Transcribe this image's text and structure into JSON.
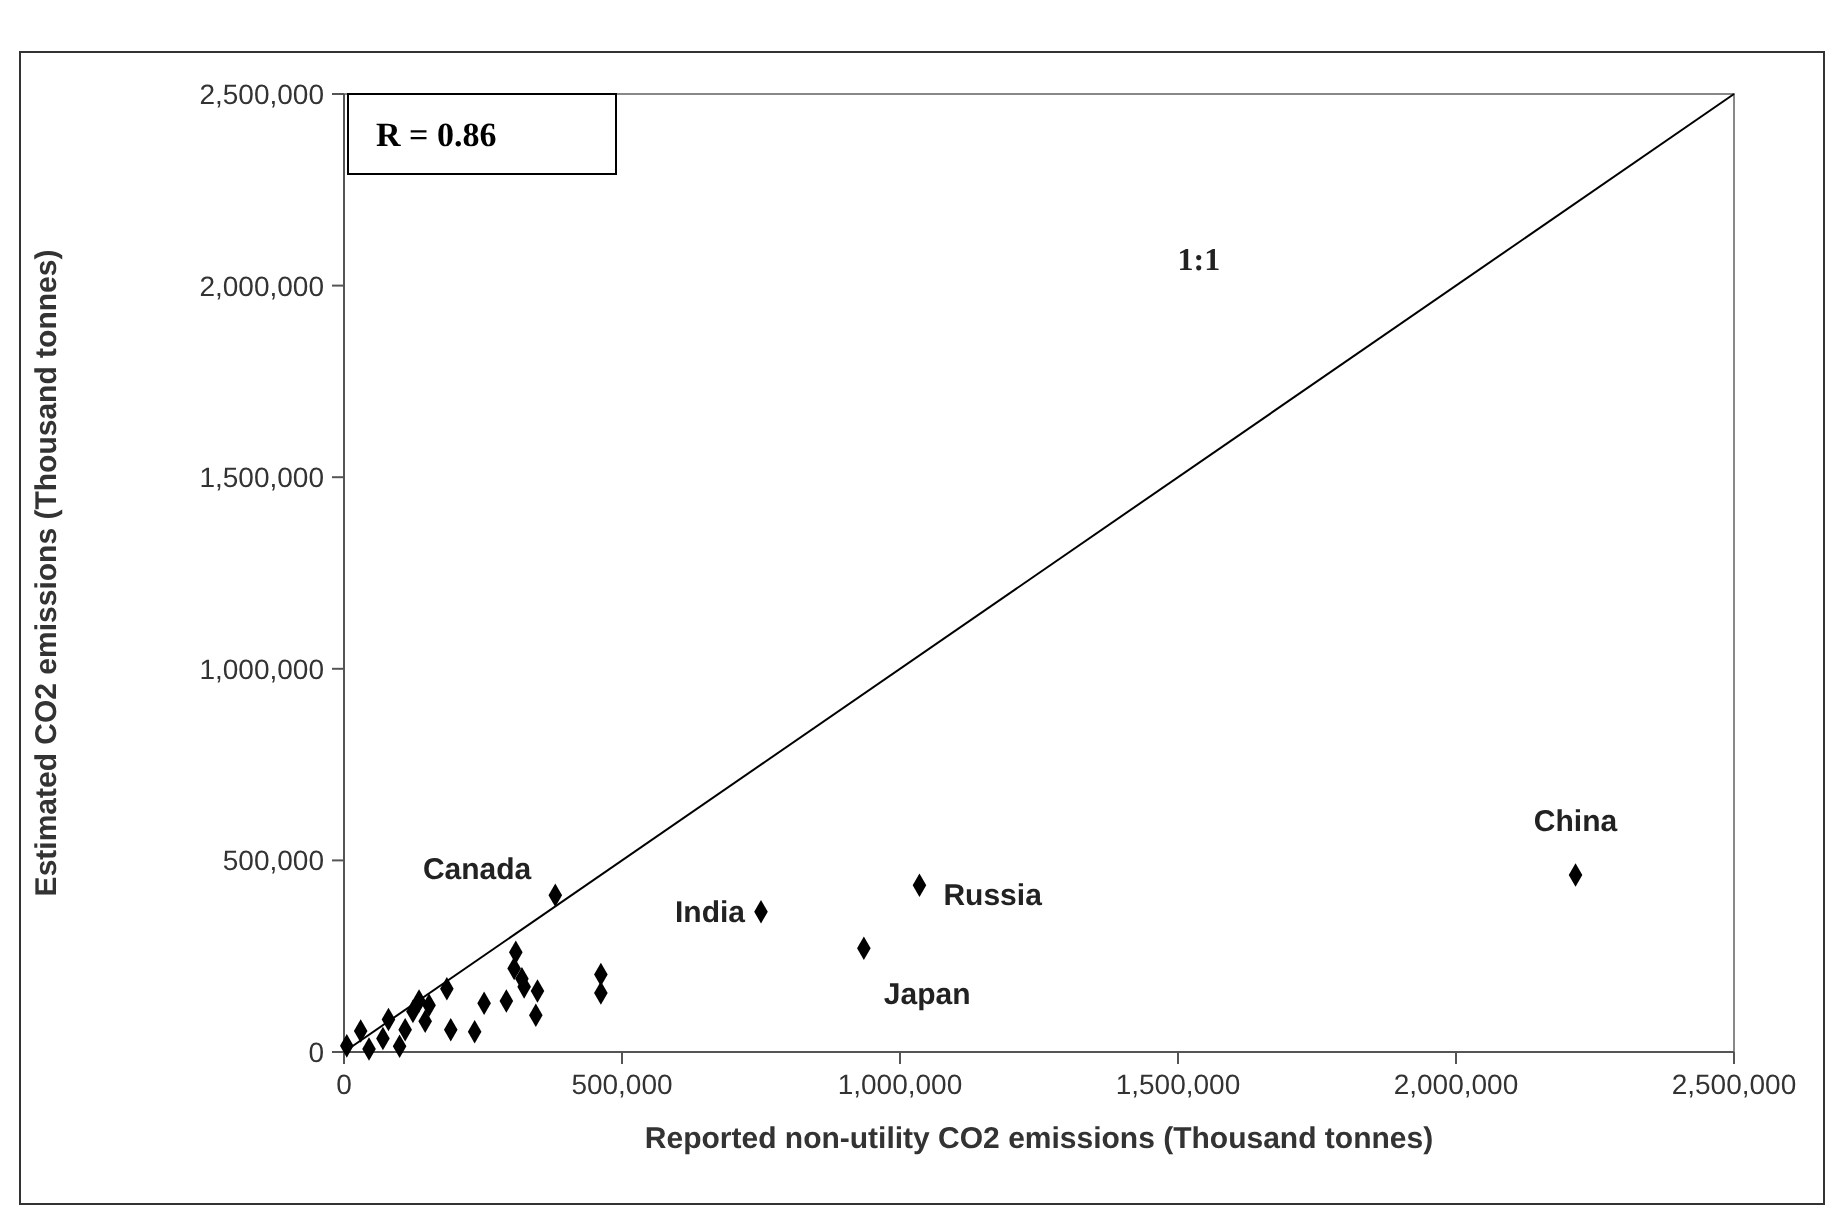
{
  "chart_data": {
    "type": "scatter",
    "xlabel": "Reported non-utility CO2 emissions (Thousand tonnes)",
    "ylabel": "Estimated CO2 emissions (Thousand tonnes)",
    "xlim": [
      0,
      2500000
    ],
    "ylim": [
      0,
      2500000
    ],
    "xticks": [
      {
        "value": 0,
        "label": "0"
      },
      {
        "value": 500000,
        "label": "500,000"
      },
      {
        "value": 1000000,
        "label": "1,000,000"
      },
      {
        "value": 1500000,
        "label": "1,500,000"
      },
      {
        "value": 2000000,
        "label": "2,000,000"
      },
      {
        "value": 2500000,
        "label": "2,500,000"
      }
    ],
    "yticks": [
      {
        "value": 0,
        "label": "0"
      },
      {
        "value": 500000,
        "label": "500,000"
      },
      {
        "value": 1000000,
        "label": "1,000,000"
      },
      {
        "value": 1500000,
        "label": "1,500,000"
      },
      {
        "value": 2000000,
        "label": "2,000,000"
      },
      {
        "value": 2500000,
        "label": "2,500,000"
      }
    ],
    "grid": false,
    "marker": "diamond",
    "series": [
      {
        "color": "#000000",
        "x": [
          380000,
          750000,
          935000,
          1035000,
          2215000,
          309000,
          306000,
          320000,
          324000,
          348000,
          345000,
          462000,
          462000,
          292000,
          252000,
          235000,
          192000,
          185000,
          153000,
          135000,
          124000,
          146000,
          110000,
          5000,
          45000,
          30000,
          70000,
          80000,
          100000
        ],
        "values": [
          409000,
          366000,
          271000,
          435000,
          462000,
          260000,
          218000,
          191000,
          170000,
          159000,
          96000,
          202000,
          154000,
          133000,
          127000,
          53000,
          58000,
          165000,
          122000,
          133000,
          106000,
          80000,
          58000,
          16000,
          8000,
          55000,
          35000,
          85000,
          15000
        ]
      },
      {
        "type": "line",
        "color": "#000000",
        "marker": "none",
        "x": [
          0,
          2500000
        ],
        "values": [
          0,
          2500000
        ]
      }
    ],
    "annotations": [
      {
        "text": "Canada",
        "x": 380000,
        "y": 409000
      },
      {
        "text": "India",
        "x": 750000,
        "y": 366000
      },
      {
        "text": "Japan",
        "x": 935000,
        "y": 271000
      },
      {
        "text": "Russia",
        "x": 1035000,
        "y": 435000
      },
      {
        "text": "China",
        "x": 2215000,
        "y": 462000
      },
      "1:1",
      "R = 0.86"
    ]
  }
}
